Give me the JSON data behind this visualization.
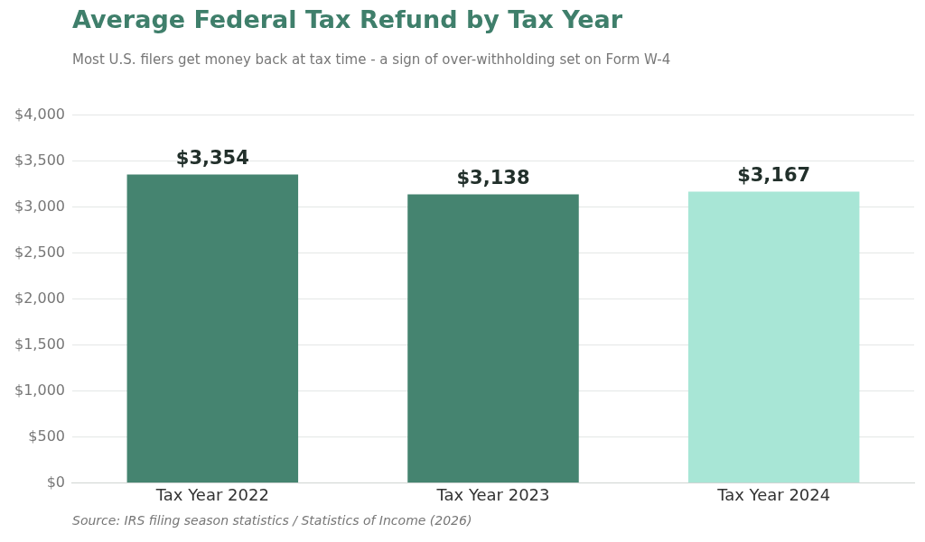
{
  "chart_data": {
    "type": "bar",
    "title": "Average Federal Tax Refund by Tax Year",
    "subtitle": "Most U.S. filers get money back at tax time - a sign of over-withholding set on Form W-4",
    "categories": [
      "Tax Year 2022",
      "Tax Year 2023",
      "Tax Year 2024"
    ],
    "values": [
      3354,
      3138,
      3167
    ],
    "colors": [
      "#458470",
      "#458470",
      "#a8e6d6"
    ],
    "value_labels": [
      "$3,354",
      "$3,138",
      "$3,167"
    ],
    "ylim": [
      0,
      4000
    ],
    "yticks": [
      {
        "value": 0,
        "label": "$0"
      },
      {
        "value": 500,
        "label": "$500"
      },
      {
        "value": 1000,
        "label": "$1,000"
      },
      {
        "value": 1500,
        "label": "$1,500"
      },
      {
        "value": 2000,
        "label": "$2,000"
      },
      {
        "value": 2500,
        "label": "$2,500"
      },
      {
        "value": 3000,
        "label": "$3,000"
      },
      {
        "value": 3500,
        "label": "$3,500"
      },
      {
        "value": 4000,
        "label": "$4,000"
      }
    ],
    "grid": "y",
    "annotations": [
      "Source: IRS filing season statistics / Statistics of Income (2026)"
    ]
  }
}
